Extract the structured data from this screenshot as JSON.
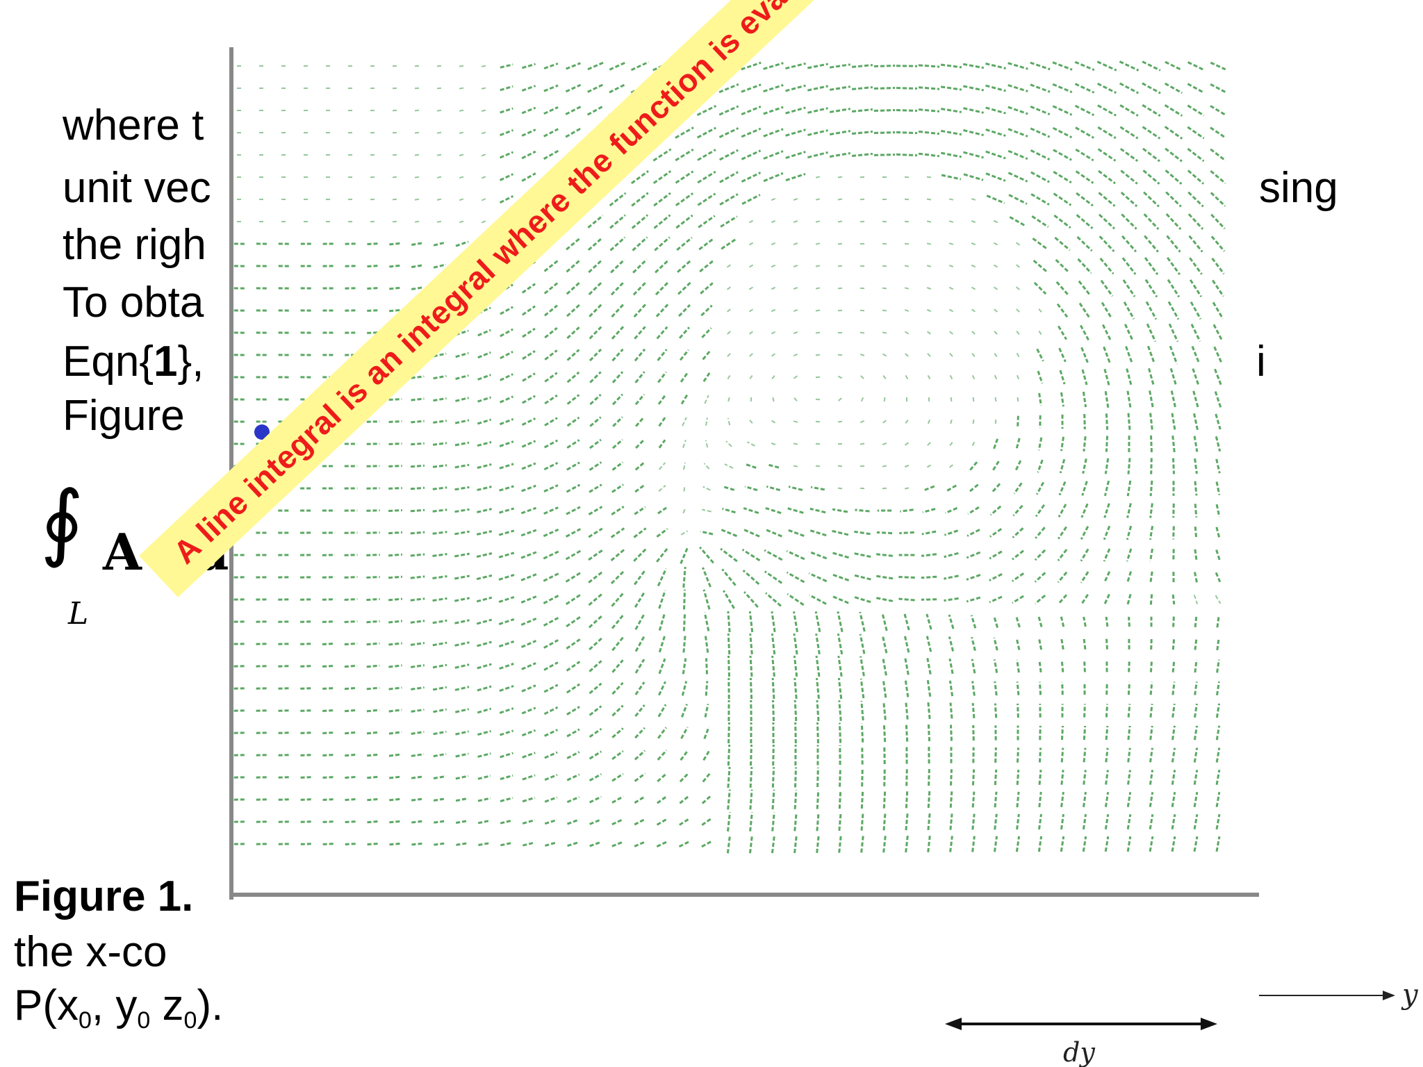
{
  "slide": {
    "lines": [
      "where t",
      "unit vec",
      "the righ",
      "To obta",
      "Eqn{",
      "Figure "
    ],
    "eqn_bold": "1",
    "eqn_tail": "},",
    "right_fragment": "sing",
    "right_fragment2": "i",
    "integral_symbol": "∮",
    "integral_subscript": "L",
    "integral_body": "A · d",
    "caption_bold": "Figure 1.",
    "caption_line2": "the x-co",
    "caption_line3_p": "P(x",
    "caption_line3_sub0": "0",
    "caption_line3_mid": ", y",
    "caption_line3_sub1": "0",
    "caption_line3_tail": " z",
    "caption_line3_sub2": "0",
    "caption_line3_end": ")."
  },
  "diagram": {
    "axis_label_y": "y",
    "dy_label": "dy",
    "field_color": "#3f9a48",
    "point_color": "#2b35c8"
  },
  "banner": {
    "text": "A line integral is an integral where the function is evaluated along a predetermined curve.",
    "background": "#fff894",
    "text_color": "#ee1b1b"
  }
}
